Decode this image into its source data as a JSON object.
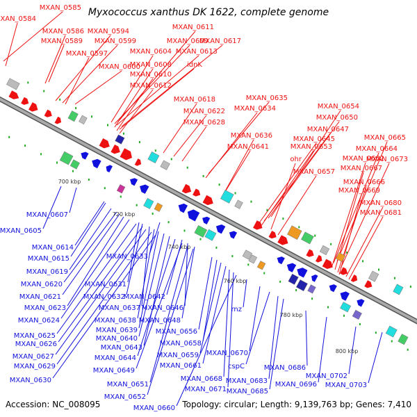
{
  "title": "Myxococcus xanthus DK 1622, complete genome",
  "accession": "Accession: NC_008095",
  "summary": "Topology: circular; Length: 9,139,763 bp; Genes: 7,410",
  "colors": {
    "forward": "#ee1111",
    "reverse": "#1111dd",
    "backbone": "#888888",
    "tick": "#22aa22",
    "feature_gray": "#bbbbbb",
    "feature_cyan": "#22dddd",
    "feature_green": "#44cc66",
    "feature_orange": "#ee9922",
    "feature_purple": "#7766cc",
    "feature_navy": "#2222aa",
    "feature_magenta": "#cc3399"
  },
  "ticks": [
    "700 kbp",
    "720 kbp",
    "740 kbp",
    "760 kbp",
    "780 kbp",
    "800 kbp"
  ],
  "forward_labels": [
    "MXAN_0585",
    "MXAN_0584",
    "MXAN_0586",
    "MXAN_0594",
    "MXAN_0589",
    "MXAN_0599",
    "MXAN_0597",
    "MXAN_0600",
    "MXAN_0611",
    "MXAN_0609",
    "MXAN_0617",
    "MXAN_0604",
    "MXAN_0613",
    "MXAN_0608",
    "idnK",
    "MXAN_0610",
    "MXAN_0612",
    "MXAN_0618",
    "MXAN_0622",
    "MXAN_0628",
    "MXAN_0635",
    "MXAN_0634",
    "MXAN_0636",
    "MXAN_0641",
    "MXAN_0654",
    "MXAN_0650",
    "MXAN_0647",
    "MXAN_0645",
    "MXAN_0653",
    "ohr",
    "MXAN_0657",
    "MXAN_0665",
    "MXAN_0664",
    "MXAN_0662",
    "MXAN_0673",
    "MXAN_0667",
    "MXAN_0666",
    "MXAN_0669",
    "MXAN_0680",
    "MXAN_0681"
  ],
  "reverse_labels": [
    "MXAN_0607",
    "MXAN_0605",
    "MXAN_0614",
    "MXAN_0615",
    "MXAN_0633",
    "MXAN_0619",
    "MXAN_0620",
    "MXAN_0631",
    "MXAN_0621",
    "MXAN_0632",
    "MXAN_0642",
    "MXAN_0623",
    "MXAN_0637",
    "MXAN_0646",
    "MXAN_0624",
    "MXAN_0638",
    "MXAN_0648",
    "MXAN_0639",
    "rnz",
    "MXAN_0625",
    "MXAN_0640",
    "MXAN_0656",
    "MXAN_0626",
    "MXAN_0643",
    "MXAN_0658",
    "MXAN_0627",
    "MXAN_0644",
    "MXAN_0659",
    "MXAN_0670",
    "MXAN_0629",
    "MXAN_0649",
    "MXAN_0661",
    "cspC",
    "MXAN_0686",
    "MXAN_0630",
    "MXAN_0651",
    "MXAN_0668",
    "MXAN_0683",
    "MXAN_0702",
    "MXAN_0671",
    "MXAN_0685",
    "MXAN_0696",
    "MXAN_0703",
    "MXAN_0652",
    "MXAN_0660"
  ]
}
